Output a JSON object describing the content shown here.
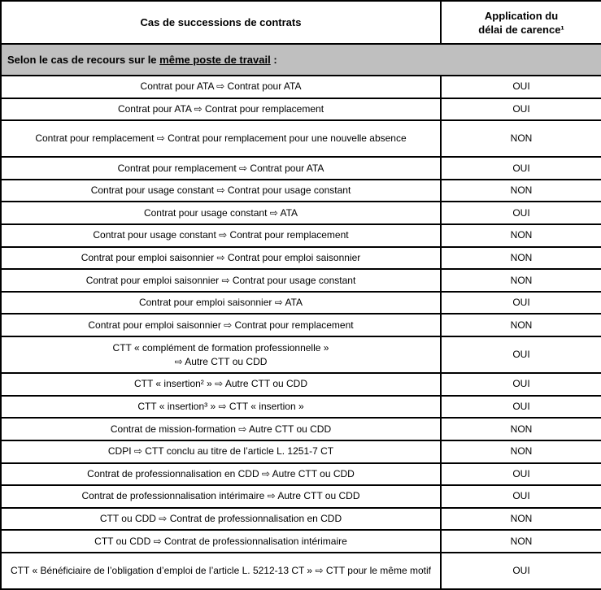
{
  "table": {
    "header": {
      "case_column": "Cas de successions de contrats",
      "application_column": "Application du\ndélai de carence¹"
    },
    "section": {
      "prefix": "Selon le cas de recours sur le ",
      "underlined": "même poste de travail",
      "suffix": " :"
    },
    "rows": [
      {
        "case": "Contrat pour ATA ⇨ Contrat pour ATA",
        "value": "OUI"
      },
      {
        "case": "Contrat pour ATA ⇨ Contrat pour remplacement",
        "value": "OUI"
      },
      {
        "case": "Contrat pour remplacement ⇨ Contrat pour remplacement pour une nouvelle absence",
        "value": "NON"
      },
      {
        "case": "Contrat pour remplacement ⇨ Contrat pour ATA",
        "value": "OUI"
      },
      {
        "case": "Contrat pour usage constant ⇨ Contrat pour usage constant",
        "value": "NON"
      },
      {
        "case": "Contrat pour usage constant ⇨ ATA",
        "value": "OUI"
      },
      {
        "case": "Contrat pour usage constant ⇨ Contrat pour remplacement",
        "value": "NON"
      },
      {
        "case": "Contrat pour emploi saisonnier ⇨ Contrat pour emploi saisonnier",
        "value": "NON"
      },
      {
        "case": "Contrat pour emploi saisonnier ⇨ Contrat pour usage constant",
        "value": "NON"
      },
      {
        "case": "Contrat pour emploi saisonnier ⇨ ATA",
        "value": "OUI"
      },
      {
        "case": "Contrat pour emploi saisonnier ⇨ Contrat pour remplacement",
        "value": "NON"
      },
      {
        "case": "CTT « complément de formation professionnelle »\n⇨ Autre CTT ou CDD",
        "value": "OUI"
      },
      {
        "case": "CTT « insertion² » ⇨ Autre CTT ou CDD",
        "value": "OUI"
      },
      {
        "case": "CTT « insertion³ » ⇨ CTT « insertion »",
        "value": "OUI"
      },
      {
        "case": "Contrat de mission-formation ⇨ Autre CTT ou CDD",
        "value": "NON"
      },
      {
        "case": "CDPI ⇨ CTT conclu au titre de l’article L. 1251-7 CT",
        "value": "NON"
      },
      {
        "case": "Contrat de professionnalisation en CDD ⇨ Autre CTT ou CDD",
        "value": "OUI"
      },
      {
        "case": "Contrat de professionnalisation intérimaire ⇨ Autre CTT ou CDD",
        "value": "OUI"
      },
      {
        "case": "CTT ou CDD ⇨ Contrat de professionnalisation en CDD",
        "value": "NON"
      },
      {
        "case": "CTT ou CDD ⇨ Contrat de professionnalisation intérimaire",
        "value": "NON"
      },
      {
        "case": "CTT « Bénéficiaire de l’obligation d’emploi de l’article L. 5212-13 CT » ⇨ CTT pour le même motif",
        "value": "OUI"
      }
    ],
    "colors": {
      "section_background": "#bfbfbf",
      "border": "#000000",
      "text": "#000000"
    }
  }
}
